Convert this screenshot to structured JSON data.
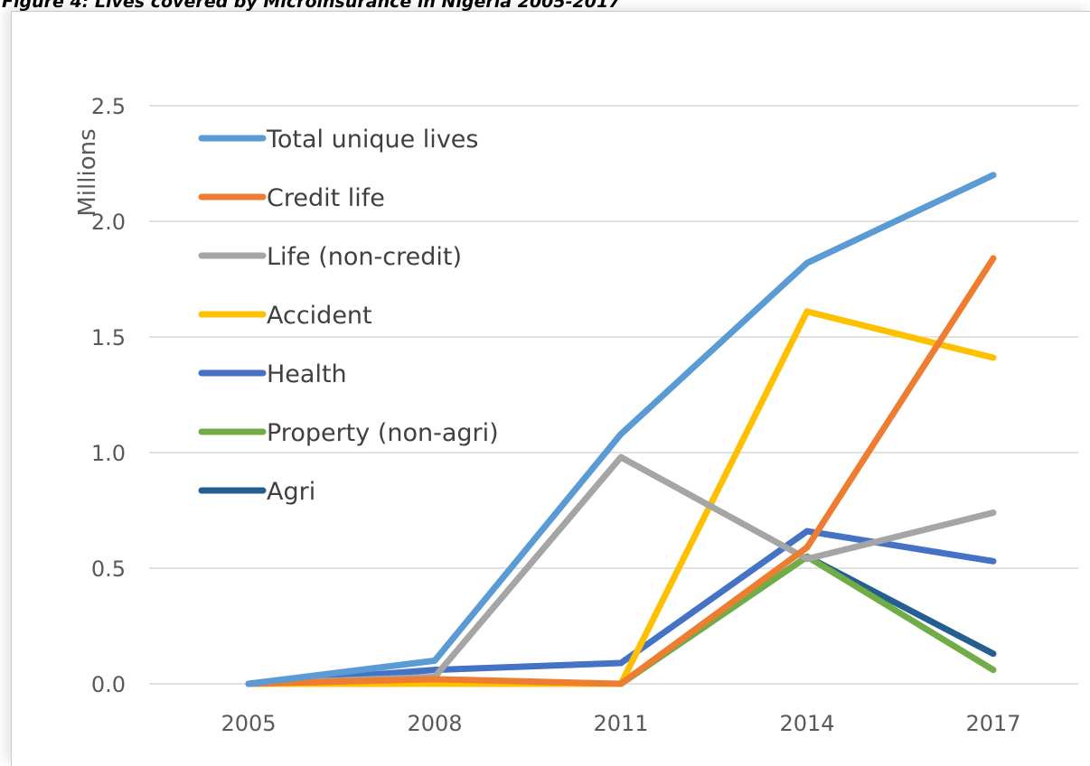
{
  "caption": "Figure 4: Lives covered by Microinsurance in Nigeria 2005-2017",
  "chart_data": {
    "type": "line",
    "title": "Figure 4: Lives covered by Microinsurance in Nigeria 2005-2017",
    "xlabel": "",
    "ylabel": "Millions",
    "categories": [
      "2005",
      "2008",
      "2011",
      "2014",
      "2017"
    ],
    "ylim": [
      0,
      2.5
    ],
    "yticks": [
      "0.0",
      "0.5",
      "1.0",
      "1.5",
      "2.0",
      "2.5"
    ],
    "grid": true,
    "legend": "top-left",
    "series": [
      {
        "name": "Total unique lives",
        "color": "#5b9bd5",
        "values": [
          0.0,
          0.1,
          1.08,
          1.82,
          2.2
        ]
      },
      {
        "name": "Credit life",
        "color": "#ed7d31",
        "values": [
          0.0,
          0.02,
          0.0,
          0.59,
          1.84
        ]
      },
      {
        "name": "Life (non-credit)",
        "color": "#a5a5a5",
        "values": [
          0.0,
          0.03,
          0.98,
          0.54,
          0.74
        ]
      },
      {
        "name": "Accident",
        "color": "#ffc000",
        "values": [
          0.0,
          0.0,
          0.0,
          1.61,
          1.41
        ]
      },
      {
        "name": "Health",
        "color": "#4472c4",
        "values": [
          0.0,
          0.06,
          0.09,
          0.66,
          0.53
        ]
      },
      {
        "name": "Property (non-agri)",
        "color": "#70ad47",
        "values": [
          0.0,
          0.0,
          0.0,
          0.55,
          0.06
        ]
      },
      {
        "name": "Agri",
        "color": "#255e91",
        "values": [
          0.0,
          0.0,
          0.0,
          0.55,
          0.13
        ]
      }
    ]
  }
}
